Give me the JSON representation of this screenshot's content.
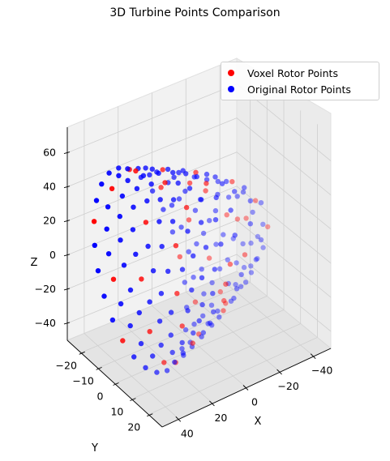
{
  "chart_data": {
    "type": "scatter3d",
    "title": "3D Turbine Points Comparison",
    "xlabel": "X",
    "ylabel": "Y",
    "zlabel": "Z",
    "xlim": [
      -50,
      50
    ],
    "ylim": [
      -28,
      28
    ],
    "zlim": [
      -50,
      75
    ],
    "x_ticks": [
      40,
      20,
      0,
      -20,
      -40
    ],
    "y_ticks": [
      -20,
      -10,
      0,
      10,
      20
    ],
    "z_ticks": [
      60,
      40,
      20,
      0,
      -20,
      -40
    ],
    "legend_position": "top-right",
    "grid": true,
    "series": [
      {
        "name": "Voxel Rotor Points",
        "color": "#ff0000",
        "description": "points on cone surface (voxelized), elevation 30 deg, azimuth 30 deg"
      },
      {
        "name": "Original Rotor Points",
        "color": "#0000ff",
        "description": "points on cone surface (original)"
      }
    ],
    "cone": {
      "tip_x": -38,
      "base_x": 38,
      "max_radius": 28,
      "z_center": 10
    }
  }
}
